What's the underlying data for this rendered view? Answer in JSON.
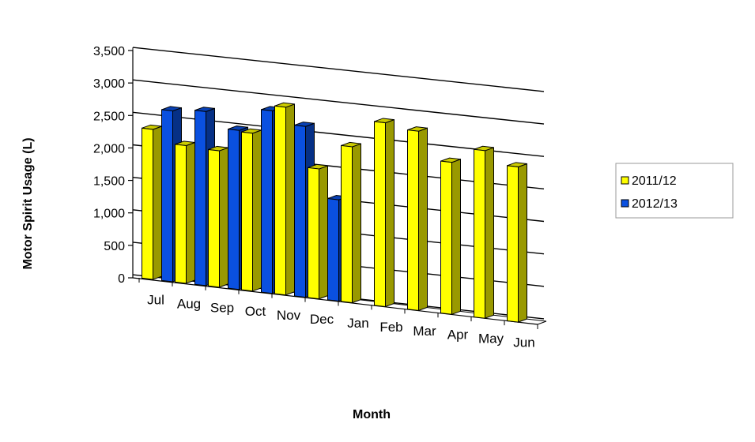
{
  "chart_data": {
    "type": "bar",
    "title": "",
    "xlabel": "Month",
    "ylabel": "Motor Spirit Usage (L)",
    "ylim": [
      0,
      3500
    ],
    "yticks": [
      0,
      500,
      1000,
      1500,
      2000,
      2500,
      3000,
      3500
    ],
    "ytick_labels": [
      "0",
      "500",
      "1,000",
      "1,500",
      "2,000",
      "2,500",
      "3,000",
      "3,500"
    ],
    "categories": [
      "Jul",
      "Aug",
      "Sep",
      "Oct",
      "Nov",
      "Dec",
      "Jan",
      "Feb",
      "Mar",
      "Apr",
      "May",
      "Jun"
    ],
    "grid": true,
    "legend_position": "right",
    "style": "3d-clustered-column",
    "series": [
      {
        "name": "2011/12",
        "color": "#ffff00",
        "values": [
          2310,
          2120,
          2100,
          2430,
          2890,
          2000,
          2400,
          2830,
          2760,
          2340,
          2580,
          2390
        ]
      },
      {
        "name": "2012/13",
        "color": "#0a50e0",
        "values": [
          2630,
          2680,
          2450,
          2810,
          2630,
          1560,
          null,
          null,
          null,
          null,
          null,
          null
        ]
      }
    ]
  }
}
